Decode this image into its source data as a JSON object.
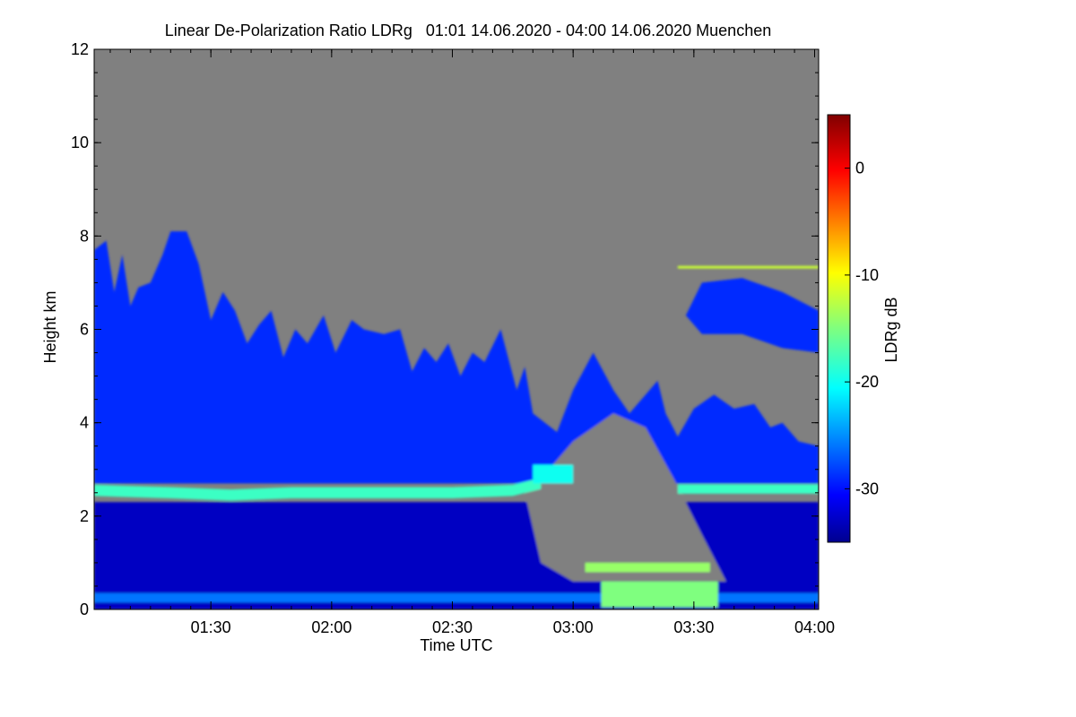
{
  "chart_data": {
    "type": "heatmap",
    "title": "Linear De-Polarization Ratio LDRg   01:01 14.06.2020 - 04:00 14.06.2020 Muenchen",
    "xlabel": "Time UTC",
    "ylabel": "Height km",
    "x_range_minutes": [
      61,
      241
    ],
    "x_ticks": [
      {
        "minute": 90,
        "label": "01:30"
      },
      {
        "minute": 120,
        "label": "02:00"
      },
      {
        "minute": 150,
        "label": "02:30"
      },
      {
        "minute": 180,
        "label": "03:00"
      },
      {
        "minute": 210,
        "label": "03:30"
      },
      {
        "minute": 240,
        "label": "04:00"
      }
    ],
    "ylim": [
      0,
      12
    ],
    "y_ticks": [
      0,
      2,
      4,
      6,
      8,
      10,
      12
    ],
    "colorbar": {
      "label": "LDRg dB",
      "range": [
        -35,
        5
      ],
      "ticks": [
        0,
        -10,
        -20,
        -30
      ],
      "colormap": "jet"
    },
    "features": [
      {
        "name": "lower layer",
        "height_km": [
          0,
          2.3
        ],
        "ldr_db": -33
      },
      {
        "name": "melting layer",
        "height_km": [
          2.4,
          2.7
        ],
        "ldr_db": -18
      },
      {
        "name": "stratiform cloud",
        "height_km": [
          2.7,
          7.5
        ],
        "ldr_db": -29
      },
      {
        "name": "near-surface echoes",
        "height_km": [
          0.1,
          1.0
        ],
        "ldr_db": -15
      },
      {
        "name": "thin layer",
        "height_km": [
          7.3,
          7.35
        ],
        "ldr_db": -12
      }
    ],
    "background_color": "#808080"
  }
}
